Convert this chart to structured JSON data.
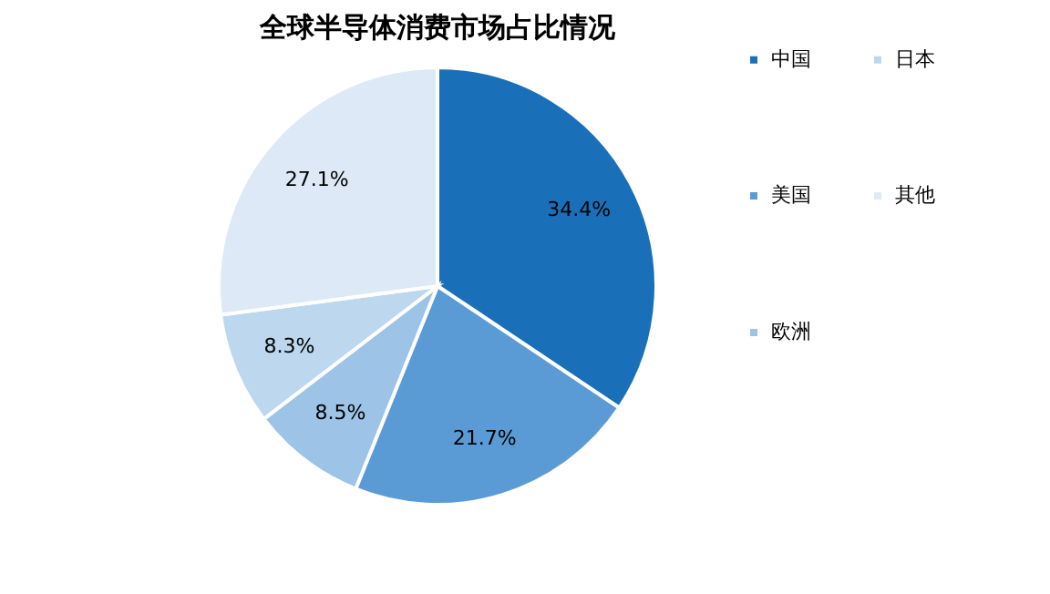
{
  "chart_data": {
    "type": "pie",
    "title": "全球半导体消费市场占比情况",
    "categories": [
      "中国",
      "美国",
      "欧洲",
      "日本",
      "其他"
    ],
    "values": [
      34.4,
      21.7,
      8.5,
      8.3,
      27.1
    ],
    "value_labels": [
      "34.4%",
      "21.7%",
      "8.5%",
      "8.3%",
      "27.1%"
    ],
    "colors": [
      "#1a70b8",
      "#5b9bd5",
      "#9dc3e6",
      "#bdd7ee",
      "#dde9f6"
    ],
    "legend": "right"
  }
}
